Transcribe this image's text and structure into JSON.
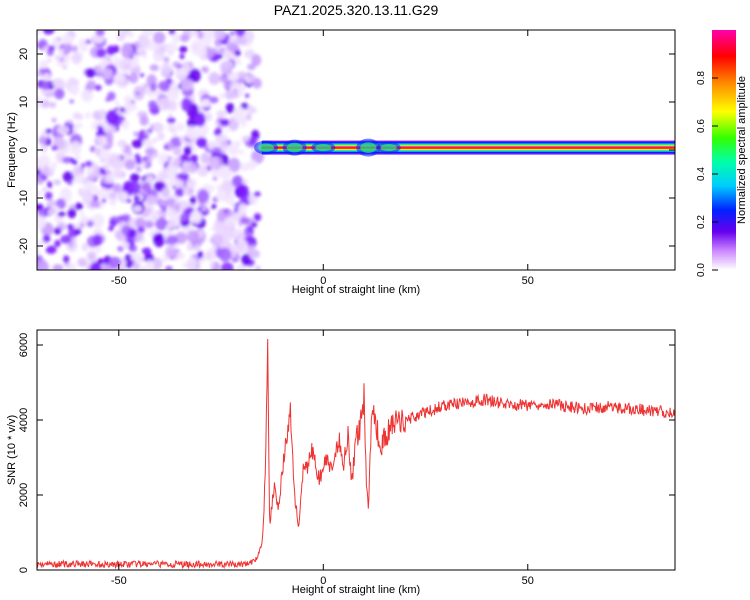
{
  "chart_data": [
    {
      "type": "heatmap",
      "title": "PAZ1.2025.320.13.11.G29",
      "xlabel": "Height of straight line (km)",
      "ylabel": "Frequency (Hz)",
      "xlim": [
        -70,
        86
      ],
      "ylim": [
        -25,
        25
      ],
      "xticks": [
        -50,
        0,
        50
      ],
      "yticks": [
        -20,
        -10,
        0,
        10,
        20
      ],
      "noise_region_x": [
        -70,
        -16
      ],
      "signal_band_x": [
        -16,
        86
      ],
      "signal_band_frequency": 0.5,
      "colorbar": {
        "label": "Normalized spectral amplitude",
        "range": [
          0.0,
          1.0
        ],
        "ticks": [
          0.0,
          0.2,
          0.4,
          0.6,
          0.8
        ]
      }
    },
    {
      "type": "line",
      "xlabel": "Height of straight line (km)",
      "ylabel": "SNR (10 * v/v)",
      "xlim": [
        -70,
        86
      ],
      "ylim": [
        0,
        6400
      ],
      "xticks": [
        -50,
        0,
        50
      ],
      "yticks": [
        0,
        2000,
        4000,
        6000
      ],
      "color": "#ee3333",
      "series": [
        {
          "name": "SNR",
          "x": [
            -70,
            -60,
            -50,
            -40,
            -30,
            -20,
            -17,
            -16,
            -15,
            -14.5,
            -14,
            -13.6,
            -13.2,
            -13,
            -12.5,
            -12,
            -11,
            -10,
            -9,
            -8,
            -7.5,
            -7,
            -6,
            -5,
            -4,
            -3,
            -2,
            -1,
            0,
            1,
            2,
            3,
            4,
            5,
            6,
            7,
            8,
            9,
            10,
            10.5,
            11,
            12,
            13,
            14,
            15,
            17,
            20,
            25,
            30,
            35,
            40,
            45,
            50,
            55,
            60,
            65,
            70,
            75,
            80,
            86
          ],
          "values": [
            150,
            160,
            150,
            155,
            150,
            150,
            200,
            400,
            700,
            1500,
            3600,
            6300,
            1700,
            1200,
            1800,
            2300,
            1700,
            2600,
            3500,
            4200,
            3000,
            2000,
            1100,
            2600,
            2700,
            3200,
            2900,
            2400,
            2700,
            3000,
            2600,
            3000,
            3500,
            2800,
            3700,
            2300,
            3500,
            3800,
            4700,
            2500,
            1600,
            4600,
            3800,
            3300,
            3500,
            3900,
            4000,
            4200,
            4400,
            4450,
            4550,
            4400,
            4400,
            4450,
            4350,
            4300,
            4350,
            4300,
            4250,
            4200
          ]
        }
      ]
    }
  ]
}
